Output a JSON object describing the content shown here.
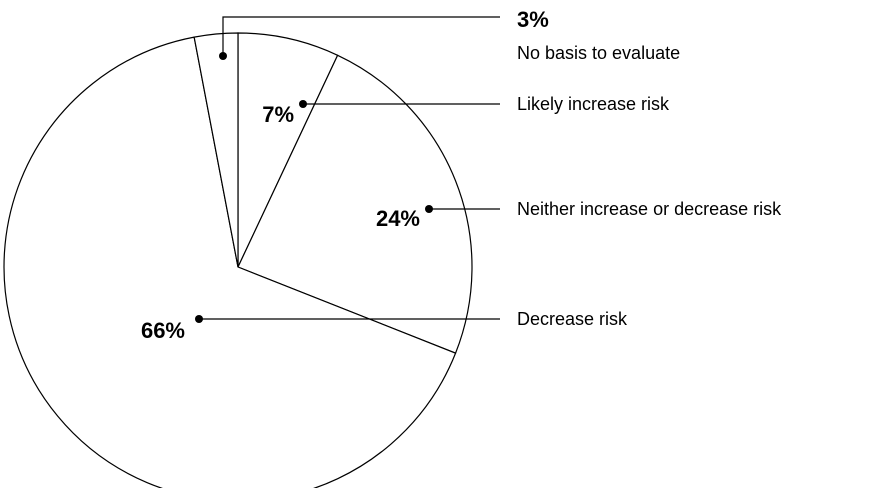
{
  "chart_data": {
    "type": "pie",
    "title": "",
    "slices": [
      {
        "label": "No basis to evaluate",
        "value": 3,
        "value_text": "3%"
      },
      {
        "label": "Likely increase risk",
        "value": 7,
        "value_text": "7%"
      },
      {
        "label": "Neither increase or decrease risk",
        "value": 24,
        "value_text": "24%"
      },
      {
        "label": "Decrease risk",
        "value": 66,
        "value_text": "66%"
      }
    ],
    "start_angle_deg": 0,
    "direction": "clockwise",
    "slice_fill": "#ffffff",
    "stroke_color": "#000000",
    "legend": "callout-lines-right"
  }
}
